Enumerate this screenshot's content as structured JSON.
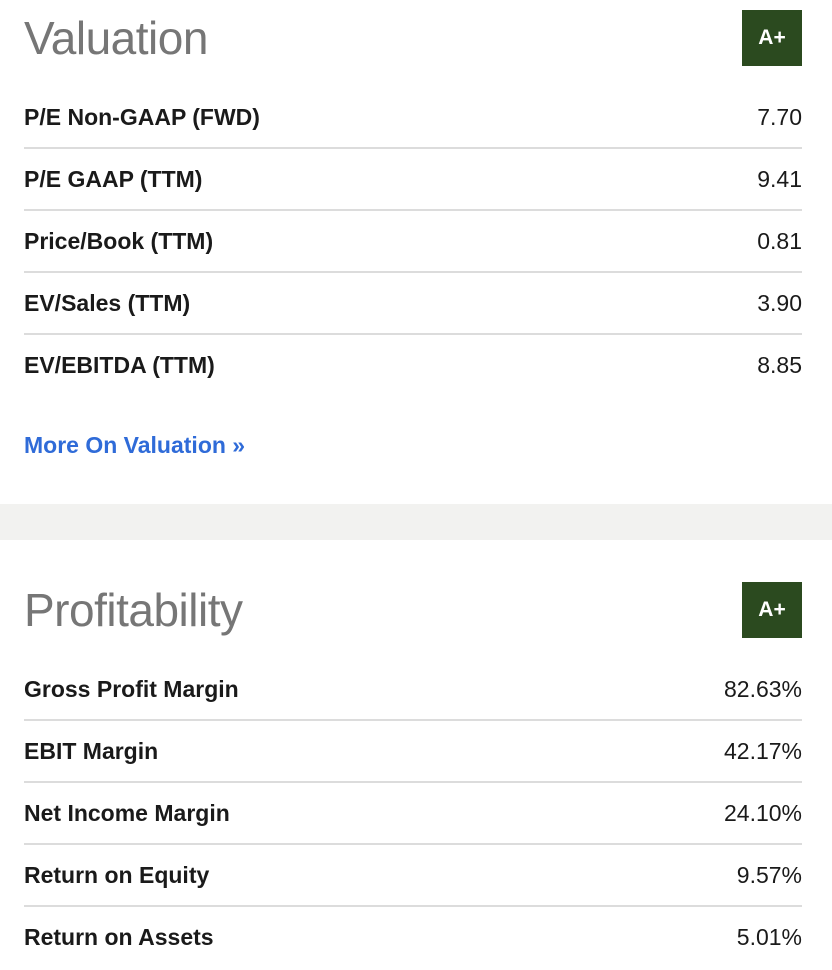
{
  "valuation": {
    "title": "Valuation",
    "grade": "A+",
    "metrics": [
      {
        "label": "P/E Non-GAAP (FWD)",
        "value": "7.70"
      },
      {
        "label": "P/E GAAP (TTM)",
        "value": "9.41"
      },
      {
        "label": "Price/Book (TTM)",
        "value": "0.81"
      },
      {
        "label": "EV/Sales (TTM)",
        "value": "3.90"
      },
      {
        "label": "EV/EBITDA (TTM)",
        "value": "8.85"
      }
    ],
    "more_link": "More On Valuation »"
  },
  "profitability": {
    "title": "Profitability",
    "grade": "A+",
    "metrics": [
      {
        "label": "Gross Profit Margin",
        "value": "82.63%"
      },
      {
        "label": "EBIT Margin",
        "value": "42.17%"
      },
      {
        "label": "Net Income Margin",
        "value": "24.10%"
      },
      {
        "label": "Return on Equity",
        "value": "9.57%"
      },
      {
        "label": "Return on Assets",
        "value": "5.01%"
      }
    ]
  },
  "colors": {
    "grade_badge_bg": "#2b4a1f",
    "link": "#2f6bd8",
    "title_gray": "#767676",
    "divider_band": "#f2f2f0"
  }
}
